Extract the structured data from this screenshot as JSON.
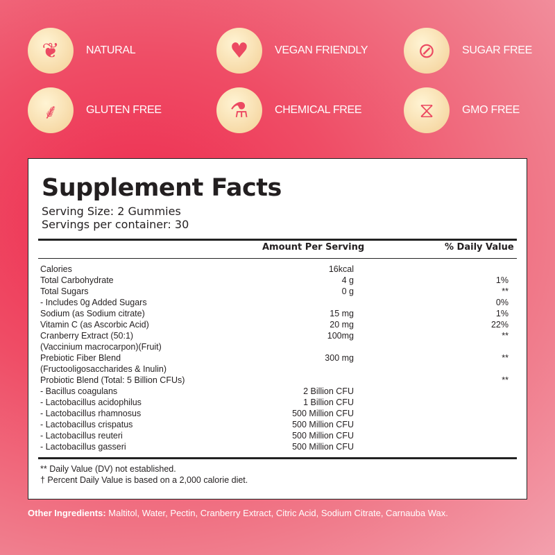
{
  "badges": [
    {
      "label": "NATURAL",
      "icon": "leaf-icon",
      "glyph": "❦"
    },
    {
      "label": "VEGAN FRIENDLY",
      "icon": "heart-plant-icon",
      "glyph": "♥"
    },
    {
      "label": "SUGAR FREE",
      "icon": "no-candy-icon",
      "glyph": "⊘"
    },
    {
      "label": "GLUTEN FREE",
      "icon": "wheat-icon",
      "glyph": "⸙"
    },
    {
      "label": "CHEMICAL FREE",
      "icon": "test-tube-drop-icon",
      "glyph": "⚗"
    },
    {
      "label": "GMO FREE",
      "icon": "dna-icon",
      "glyph": "⧖"
    }
  ],
  "facts": {
    "title": "Supplement Facts",
    "serving_size": "Serving Size: 2 Gummies",
    "servings_per_container": "Servings per container: 30",
    "col_amount": "Amount Per Serving",
    "col_dv": "% Daily Value",
    "rows": [
      {
        "name": "Calories",
        "amount": "16kcal",
        "dv": ""
      },
      {
        "name": "Total Carbohydrate",
        "amount": "4 g",
        "dv": "1%"
      },
      {
        "name": "Total Sugars",
        "amount": "0 g",
        "dv": "**"
      },
      {
        "name": "- Includes 0g Added Sugars",
        "amount": "",
        "dv": "0%"
      },
      {
        "name": "Sodium (as Sodium citrate)",
        "amount": "15 mg",
        "dv": "1%"
      },
      {
        "name": "Vitamin C (as Ascorbic Acid)",
        "amount": "20 mg",
        "dv": "22%"
      },
      {
        "name": "Cranberry Extract (50:1)",
        "amount": "100mg",
        "dv": "**"
      },
      {
        "name": "(Vaccinium macrocarpon)(Fruit)",
        "amount": "",
        "dv": ""
      },
      {
        "name": "Prebiotic Fiber Blend",
        "amount": "300 mg",
        "dv": "**"
      },
      {
        "name": "(Fructooligosaccharides & Inulin)",
        "amount": "",
        "dv": ""
      },
      {
        "name": "Probiotic Blend (Total: 5 Billion CFUs)",
        "amount": "",
        "dv": "**"
      },
      {
        "name": "- Bacillus coagulans",
        "amount": "2 Billion CFU",
        "dv": ""
      },
      {
        "name": "- Lactobacillus acidophilus",
        "amount": "1 Billion CFU",
        "dv": ""
      },
      {
        "name": "- Lactobacillus rhamnosus",
        "amount": "500 Million CFU",
        "dv": ""
      },
      {
        "name": "- Lactobacillus crispatus",
        "amount": "500 Million CFU",
        "dv": ""
      },
      {
        "name": "- Lactobacillus reuteri",
        "amount": "500 Million CFU",
        "dv": ""
      },
      {
        "name": "- Lactobacillus gasseri",
        "amount": "500 Million CFU",
        "dv": ""
      }
    ],
    "footnote1": "** Daily Value (DV) not established.",
    "footnote2": "† Percent Daily Value is based on a 2,000 calorie diet."
  },
  "other_ingredients": {
    "label": "Other Ingredients:",
    "text": " Maltitol, Water, Pectin, Cranberry Extract, Citric Acid, Sodium Citrate, Carnauba Wax."
  }
}
